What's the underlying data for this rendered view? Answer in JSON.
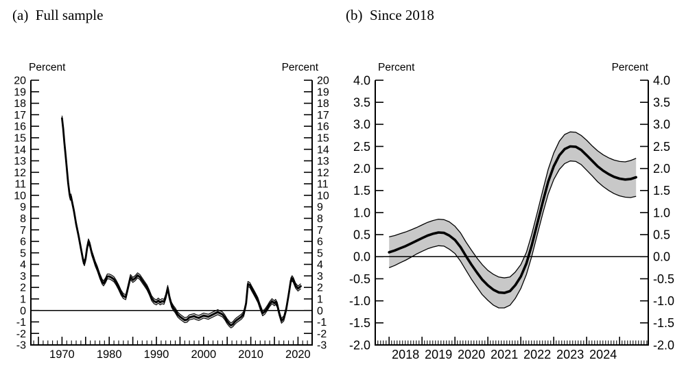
{
  "figure": {
    "background": "#ffffff",
    "ink": "#000000"
  },
  "chart_data": [
    {
      "type": "line",
      "panel": "a",
      "title": "(a)  Full sample",
      "ylabel_left": "Percent",
      "ylabel_right": "Percent",
      "xlim": [
        1963.4,
        2023.0
      ],
      "ylim": [
        -3,
        20
      ],
      "grid": false,
      "zero_line": 0,
      "band_fill": "#c8c8c8",
      "line_color": "#000000",
      "y_tick_values": [
        -3,
        -2,
        -1,
        0,
        1,
        2,
        3,
        4,
        5,
        6,
        7,
        8,
        9,
        10,
        11,
        12,
        13,
        14,
        15,
        16,
        17,
        18,
        19,
        20
      ],
      "y_tick_labels": [
        "-3",
        "-2",
        "-1",
        "0",
        "1",
        "2",
        "3",
        "4",
        "5",
        "6",
        "7",
        "8",
        "9",
        "10",
        "11",
        "12",
        "13",
        "14",
        "15",
        "16",
        "17",
        "18",
        "19",
        "20"
      ],
      "x_axis": {
        "minor_step": 1,
        "major_ticks": [
          1965,
          1970,
          1975,
          1980,
          1985,
          1990,
          1995,
          2000,
          2005,
          2010,
          2015,
          2020
        ],
        "labels": [
          {
            "x": 1970,
            "text": "1970"
          },
          {
            "x": 1980,
            "text": "1980"
          },
          {
            "x": 1990,
            "text": "1990"
          },
          {
            "x": 2000,
            "text": "2000"
          },
          {
            "x": 2010,
            "text": "2010"
          },
          {
            "x": 2020,
            "text": "2020"
          }
        ]
      },
      "series": [
        {
          "name": "trend-estimate-with-credible-band",
          "band_halfwidth": 0.22,
          "x": [
            1970.0,
            1970.25,
            1970.5,
            1970.75,
            1971.0,
            1971.3,
            1971.6,
            1971.75,
            1971.9,
            1972.1,
            1972.5,
            1973.0,
            1973.5,
            1974.0,
            1974.5,
            1974.75,
            1975.0,
            1975.3,
            1975.6,
            1975.9,
            1976.3,
            1976.7,
            1977.0,
            1977.5,
            1978.0,
            1978.5,
            1978.8,
            1979.2,
            1979.6,
            1980.0,
            1980.5,
            1981.0,
            1981.5,
            1982.0,
            1982.5,
            1983.0,
            1983.5,
            1984.0,
            1984.5,
            1985.0,
            1985.5,
            1986.0,
            1986.5,
            1987.0,
            1987.5,
            1988.0,
            1988.5,
            1989.0,
            1989.5,
            1990.0,
            1990.4,
            1990.8,
            1991.2,
            1991.6,
            1992.0,
            1992.4,
            1992.8,
            1993.2,
            1993.6,
            1994.0,
            1994.5,
            1995.0,
            1995.5,
            1996.0,
            1996.5,
            1997.0,
            1997.5,
            1998.0,
            1998.5,
            1999.0,
            1999.5,
            2000.0,
            2000.5,
            2001.0,
            2001.5,
            2002.0,
            2002.5,
            2003.0,
            2003.5,
            2004.0,
            2004.5,
            2005.0,
            2005.5,
            2005.8,
            2006.2,
            2006.6,
            2007.0,
            2007.5,
            2008.0,
            2008.5,
            2009.0,
            2009.4,
            2009.8,
            2010.2,
            2010.6,
            2011.0,
            2011.5,
            2012.0,
            2012.5,
            2013.0,
            2013.5,
            2014.0,
            2014.5,
            2015.0,
            2015.25,
            2015.6,
            2016.0,
            2016.5,
            2017.0,
            2017.5,
            2018.0,
            2018.5,
            2018.75,
            2019.0,
            2019.5,
            2020.0,
            2020.3,
            2020.6
          ],
          "y": [
            16.7,
            15.8,
            14.6,
            13.5,
            12.4,
            11.1,
            10.1,
            9.8,
            9.9,
            9.5,
            8.7,
            7.5,
            6.5,
            5.4,
            4.3,
            4.1,
            4.5,
            5.4,
            6.0,
            5.7,
            5.0,
            4.5,
            4.1,
            3.6,
            3.0,
            2.5,
            2.35,
            2.6,
            2.95,
            2.95,
            2.85,
            2.7,
            2.4,
            2.0,
            1.55,
            1.25,
            1.15,
            2.0,
            2.9,
            2.65,
            2.8,
            3.05,
            2.9,
            2.6,
            2.3,
            2.0,
            1.55,
            1.05,
            0.8,
            0.7,
            0.85,
            0.7,
            0.8,
            0.75,
            1.2,
            1.95,
            1.1,
            0.5,
            0.2,
            0.0,
            -0.35,
            -0.55,
            -0.7,
            -0.85,
            -0.8,
            -0.6,
            -0.55,
            -0.5,
            -0.6,
            -0.65,
            -0.55,
            -0.45,
            -0.5,
            -0.55,
            -0.45,
            -0.35,
            -0.25,
            -0.15,
            -0.25,
            -0.35,
            -0.6,
            -0.95,
            -1.2,
            -1.3,
            -1.2,
            -1.0,
            -0.85,
            -0.7,
            -0.55,
            -0.3,
            0.6,
            2.3,
            2.2,
            1.9,
            1.6,
            1.3,
            0.9,
            0.3,
            -0.25,
            -0.1,
            0.2,
            0.55,
            0.8,
            0.62,
            0.75,
            0.5,
            -0.2,
            -0.9,
            -0.7,
            0.1,
            1.3,
            2.6,
            2.8,
            2.65,
            2.15,
            1.9,
            2.0,
            2.1
          ]
        }
      ]
    },
    {
      "type": "line",
      "panel": "b",
      "title": "(b)  Since 2018",
      "ylabel_left": "Percent",
      "ylabel_right": "Percent",
      "xlim": [
        2017.58,
        2025.87
      ],
      "ylim": [
        -2.0,
        4.0
      ],
      "grid": false,
      "zero_line": 0,
      "band_fill": "#c8c8c8",
      "line_color": "#000000",
      "y_tick_values": [
        -2.0,
        -1.5,
        -1.0,
        -0.5,
        0.0,
        0.5,
        1.0,
        1.5,
        2.0,
        2.5,
        3.0,
        3.5,
        4.0
      ],
      "y_tick_labels": [
        "-2.0",
        "-1.5",
        "-1.0",
        "-0.5",
        "0.0",
        "0.5",
        "1.0",
        "1.5",
        "2.0",
        "2.5",
        "3.0",
        "3.5",
        "4.0"
      ],
      "x_axis": {
        "minor_step": 0.083333,
        "major_ticks": [
          2018,
          2019,
          2020,
          2021,
          2022,
          2023,
          2024,
          2025
        ],
        "labels": [
          {
            "x": 2018.5,
            "text": "2018"
          },
          {
            "x": 2019.5,
            "text": "2019"
          },
          {
            "x": 2020.5,
            "text": "2020"
          },
          {
            "x": 2021.5,
            "text": "2021"
          },
          {
            "x": 2022.5,
            "text": "2022"
          },
          {
            "x": 2023.5,
            "text": "2023"
          },
          {
            "x": 2024.5,
            "text": "2024"
          }
        ]
      },
      "series": [
        {
          "name": "trend-estimate-with-credible-band",
          "band_halfwidth": [
            0.35,
            0.34,
            0.33,
            0.32,
            0.31,
            0.3,
            0.3,
            0.3,
            0.3,
            0.3,
            0.3,
            0.31,
            0.31,
            0.32,
            0.32,
            0.33,
            0.33,
            0.34,
            0.34,
            0.35,
            0.35,
            0.34,
            0.32,
            0.3,
            0.27,
            0.25,
            0.25,
            0.25,
            0.26,
            0.28,
            0.3,
            0.32,
            0.33,
            0.33,
            0.33,
            0.33,
            0.34,
            0.34,
            0.35,
            0.36,
            0.37,
            0.38,
            0.39,
            0.4,
            0.42,
            0.43
          ],
          "x": [
            2018.0,
            2018.17,
            2018.33,
            2018.5,
            2018.67,
            2018.83,
            2019.0,
            2019.17,
            2019.33,
            2019.5,
            2019.67,
            2019.83,
            2020.0,
            2020.17,
            2020.33,
            2020.5,
            2020.67,
            2020.83,
            2021.0,
            2021.17,
            2021.33,
            2021.5,
            2021.67,
            2021.83,
            2022.0,
            2022.17,
            2022.33,
            2022.5,
            2022.67,
            2022.83,
            2023.0,
            2023.17,
            2023.33,
            2023.5,
            2023.67,
            2023.83,
            2024.0,
            2024.17,
            2024.33,
            2024.5,
            2024.67,
            2024.83,
            2025.0,
            2025.17,
            2025.33,
            2025.5
          ],
          "y": [
            0.1,
            0.14,
            0.19,
            0.24,
            0.3,
            0.36,
            0.42,
            0.48,
            0.52,
            0.55,
            0.54,
            0.48,
            0.38,
            0.22,
            0.02,
            -0.18,
            -0.36,
            -0.52,
            -0.65,
            -0.75,
            -0.81,
            -0.82,
            -0.78,
            -0.65,
            -0.45,
            -0.15,
            0.25,
            0.75,
            1.25,
            1.7,
            2.05,
            2.3,
            2.44,
            2.5,
            2.49,
            2.42,
            2.3,
            2.17,
            2.05,
            1.95,
            1.87,
            1.81,
            1.77,
            1.75,
            1.76,
            1.8
          ]
        }
      ]
    }
  ]
}
